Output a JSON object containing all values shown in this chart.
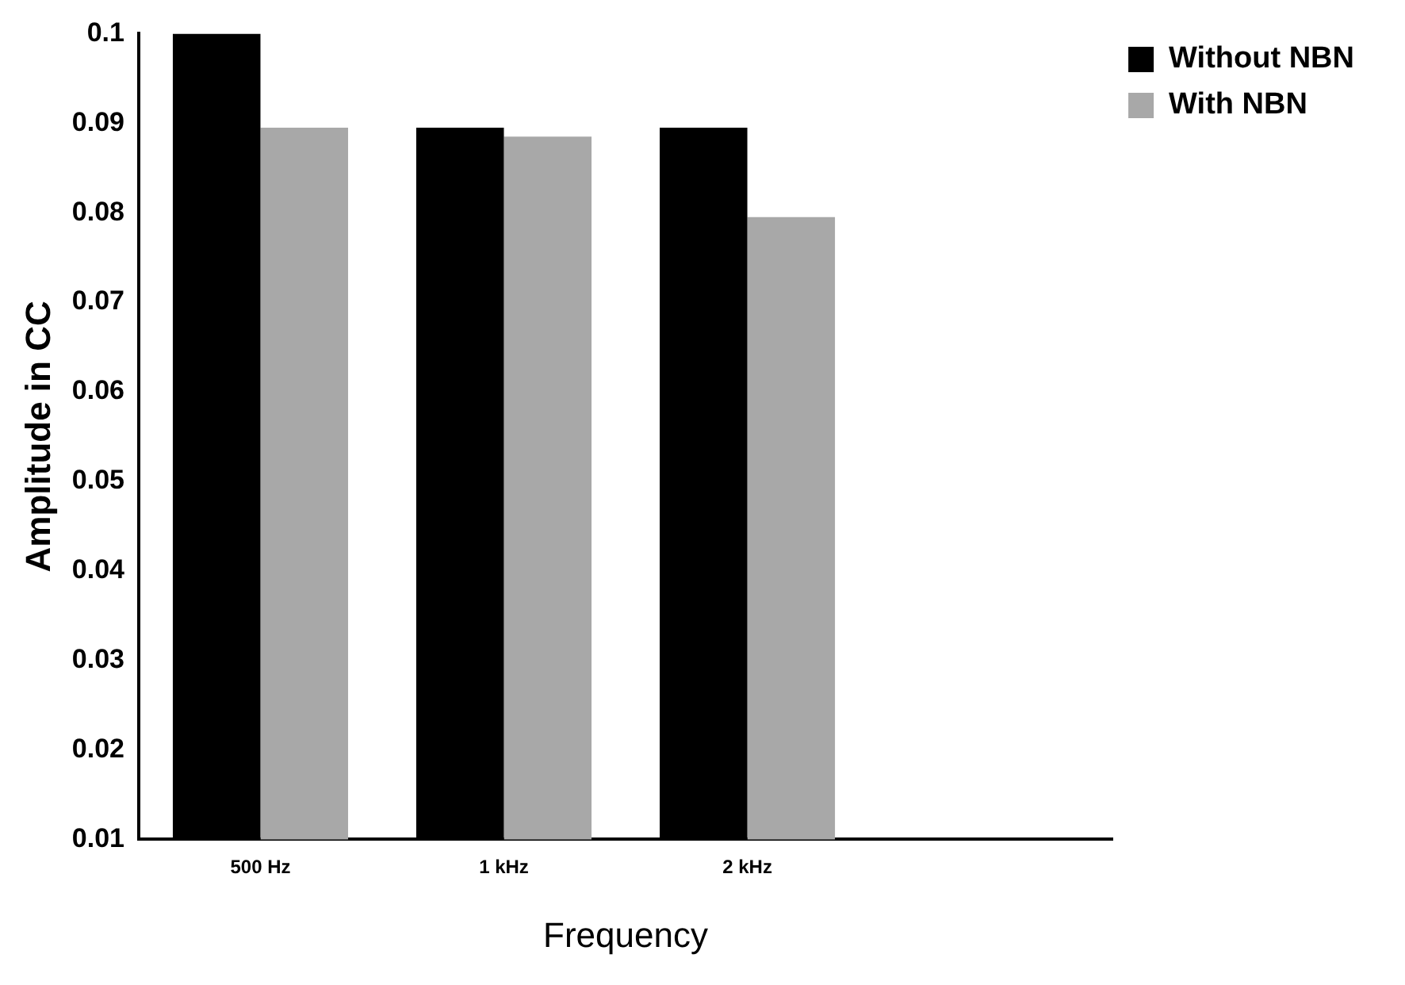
{
  "chart_data": {
    "type": "bar",
    "xlabel": "Frequency",
    "ylabel": "Amplitude in CC",
    "categories": [
      "500 Hz",
      "1 kHz",
      "2 kHz",
      null
    ],
    "series": [
      {
        "name": "Without NBN",
        "color": "#000000",
        "values": [
          0.1,
          0.0895,
          0.0895,
          null
        ]
      },
      {
        "name": "With NBN",
        "color": "#a8a8a8",
        "values": [
          0.0895,
          0.0885,
          0.0795,
          null
        ]
      }
    ],
    "ylim": [
      0.01,
      0.1
    ],
    "yticks": [
      {
        "value": 0.01,
        "label": "0.01"
      },
      {
        "value": 0.02,
        "label": "0.02"
      },
      {
        "value": 0.03,
        "label": "0.03"
      },
      {
        "value": 0.04,
        "label": "0.04"
      },
      {
        "value": 0.05,
        "label": "0.05"
      },
      {
        "value": 0.06,
        "label": "0.06"
      },
      {
        "value": 0.07,
        "label": "0.07"
      },
      {
        "value": 0.08,
        "label": "0.08"
      },
      {
        "value": 0.09,
        "label": "0.09"
      },
      {
        "value": 0.1,
        "label": "0.1"
      }
    ],
    "grid": false,
    "legend": "right"
  }
}
